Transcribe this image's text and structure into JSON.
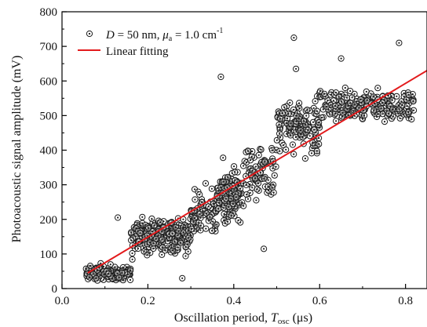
{
  "chart_data": {
    "type": "scatter",
    "title": "",
    "xlabel": {
      "main": "Oscillation period, ",
      "var": "T",
      "sub": "osc",
      "unit": " (μs)"
    },
    "ylabel": "Photoacoustic signal amplitude (mV)",
    "xlim": [
      0.0,
      0.85
    ],
    "ylim": [
      0,
      800
    ],
    "x_ticks": [
      "0.0",
      "0.2",
      "0.4",
      "0.6",
      "0.8"
    ],
    "y_ticks": [
      "0",
      "100",
      "200",
      "300",
      "400",
      "500",
      "600",
      "700",
      "800"
    ],
    "grid": false,
    "legend": {
      "placement": "top-left",
      "scatter_label": {
        "d_var": "D",
        "d_value": " = 50 nm, ",
        "mu_var": "μ",
        "mu_sub": "a",
        "mu_value": " = 1.0 cm",
        "mu_exp": "-1"
      },
      "line_label": "Linear fitting"
    },
    "colors": {
      "marker_edge": "#1a1a1a",
      "fit_line": "#e31a1c",
      "axis": "#000000"
    },
    "series": [
      {
        "kind": "markers",
        "marker": "open-circle-with-dot",
        "clusters": [
          {
            "x_range": [
              0.055,
              0.16
            ],
            "y_mean": 45,
            "y_spread": 40,
            "count": 150
          },
          {
            "x_range": [
              0.16,
              0.3
            ],
            "y_mean": 155,
            "y_spread": 95,
            "count": 230
          },
          {
            "x_range": [
              0.3,
              0.36
            ],
            "y_mean": 215,
            "y_spread": 120,
            "count": 70
          },
          {
            "x_range": [
              0.36,
              0.42
            ],
            "y_mean": 270,
            "y_spread": 150,
            "count": 150
          },
          {
            "x_range": [
              0.42,
              0.5
            ],
            "y_mean": 330,
            "y_spread": 160,
            "count": 80
          },
          {
            "x_range": [
              0.5,
              0.6
            ],
            "y_mean": 470,
            "y_spread": 130,
            "count": 140
          },
          {
            "x_range": [
              0.6,
              0.82
            ],
            "y_mean": 530,
            "y_spread": 80,
            "count": 200
          }
        ],
        "highlighted_points": [
          {
            "x": 0.54,
            "y": 725
          },
          {
            "x": 0.785,
            "y": 710
          },
          {
            "x": 0.37,
            "y": 612
          },
          {
            "x": 0.545,
            "y": 635
          },
          {
            "x": 0.65,
            "y": 665
          },
          {
            "x": 0.47,
            "y": 115
          },
          {
            "x": 0.28,
            "y": 30
          },
          {
            "x": 0.13,
            "y": 205
          }
        ]
      },
      {
        "kind": "line",
        "x": [
          0.06,
          0.85
        ],
        "y": [
          45,
          630
        ]
      }
    ]
  }
}
